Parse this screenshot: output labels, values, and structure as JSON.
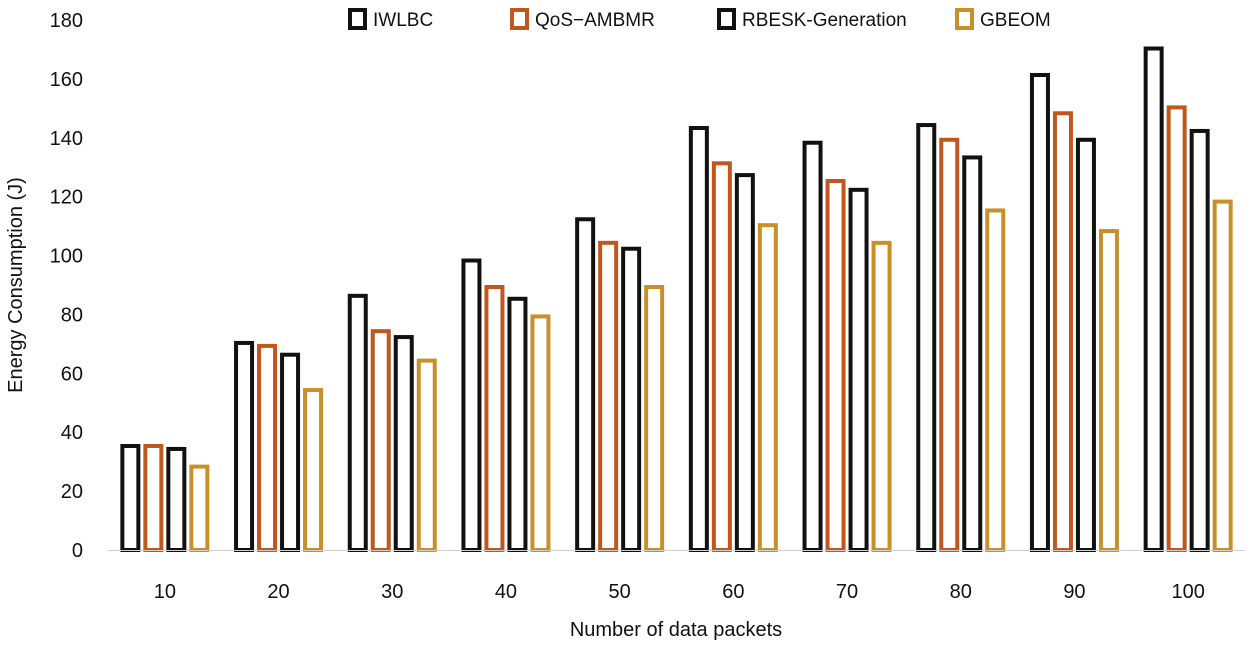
{
  "chart_data": {
    "type": "bar",
    "title": "",
    "xlabel": "Number of data packets",
    "ylabel": "Energy Consumption (J)",
    "ylim": [
      0,
      180
    ],
    "ytick_step": 20,
    "grid": false,
    "legend_position": "top",
    "categories": [
      "10",
      "20",
      "30",
      "40",
      "50",
      "60",
      "70",
      "80",
      "90",
      "100"
    ],
    "series": [
      {
        "name": "IWLBC",
        "edge_color": "#111111",
        "fill_color": "#ffffff",
        "values": [
          36,
          71,
          87,
          99,
          113,
          144,
          139,
          145,
          162,
          171
        ]
      },
      {
        "name": "QoS−AMBMR",
        "edge_color": "#c2571e",
        "fill_color": "#ffffff",
        "values": [
          36,
          70,
          75,
          90,
          105,
          132,
          126,
          140,
          149,
          151
        ]
      },
      {
        "name": "RBESK-Generation",
        "edge_color": "#111111",
        "fill_color": "#ffffff",
        "values": [
          35,
          67,
          73,
          86,
          103,
          128,
          123,
          134,
          140,
          143
        ]
      },
      {
        "name": "GBEOM",
        "edge_color": "#c9902a",
        "fill_color": "#ffffff",
        "values": [
          29,
          55,
          65,
          80,
          90,
          111,
          105,
          116,
          109,
          119
        ]
      }
    ]
  }
}
